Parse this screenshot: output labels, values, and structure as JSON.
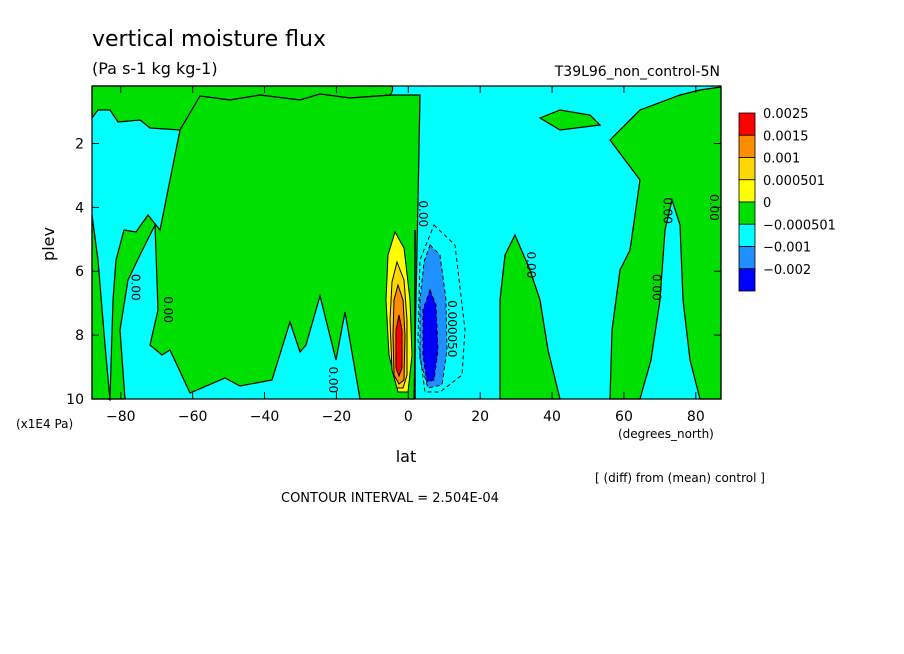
{
  "chart_data": {
    "type": "heatmap",
    "title": "vertical moisture flux",
    "subtitle": "(Pa s-1 kg kg-1)",
    "run_label": "T39L96_non_control-5N",
    "xlabel": "lat",
    "x_units": "(degrees_north)",
    "ylabel": "plev",
    "y_units": "(x1E4 Pa)",
    "xlim": [
      -88,
      87
    ],
    "ylim": [
      10,
      0.2
    ],
    "x_ticks": [
      -80,
      -60,
      -40,
      -20,
      0,
      20,
      40,
      60,
      80
    ],
    "y_ticks": [
      2,
      4,
      6,
      8,
      10
    ],
    "grid": false,
    "legend_position": "right",
    "colorbar": {
      "labels": [
        "0.0025",
        "0.0015",
        "0.001",
        "0.000501",
        "0",
        "−0.000501",
        "−0.001",
        "−0.002"
      ],
      "colors": [
        "#ff0000",
        "#ff8c00",
        "#ffd700",
        "#ffff00",
        "#00e000",
        "#00ffff",
        "#1e90ff",
        "#0000ff"
      ]
    },
    "contour_labels": [
      {
        "text": "0.00",
        "lat": -77,
        "plev": 6.5
      },
      {
        "text": "0.00",
        "lat": -68,
        "plev": 7.2
      },
      {
        "text": "0.00",
        "lat": -22,
        "plev": 9.4
      },
      {
        "text": "0.00",
        "lat": 3,
        "plev": 4.2
      },
      {
        "text": "0.00",
        "lat": 33,
        "plev": 5.8
      },
      {
        "text": "0.00",
        "lat": 68,
        "plev": 6.5
      },
      {
        "text": "0.00",
        "lat": 71,
        "plev": 4.1
      },
      {
        "text": "0.00",
        "lat": 84,
        "plev": 4.0
      },
      {
        "text": "0.000050",
        "lat": 11,
        "plev": 7.8
      }
    ],
    "note": "[ (diff) from (mean) control ]",
    "contour_interval_text": "CONTOUR INTERVAL = 2.504E-04"
  }
}
